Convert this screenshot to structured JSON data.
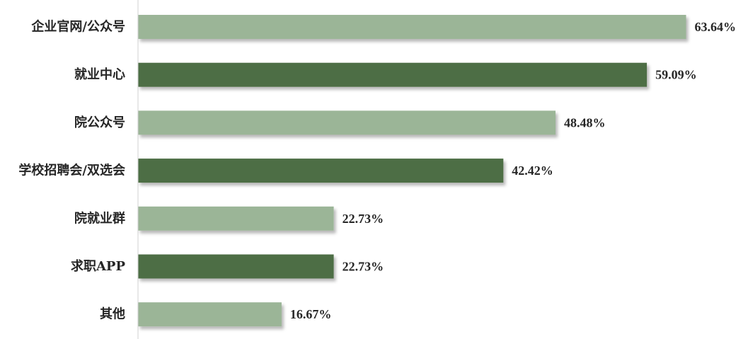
{
  "chart_data": {
    "type": "bar",
    "orientation": "horizontal",
    "categories": [
      "企业官网/公众号",
      "就业中心",
      "院公众号",
      "学校招聘会/双选会",
      "院就业群",
      "求职APP",
      "其他"
    ],
    "values": [
      63.64,
      59.09,
      48.48,
      42.42,
      22.73,
      22.73,
      16.67
    ],
    "value_labels": [
      "63.64%",
      "59.09%",
      "48.48%",
      "42.42%",
      "22.73%",
      "22.73%",
      "16.67%"
    ],
    "unit": "%",
    "xlim": [
      0,
      100
    ],
    "grid": false,
    "legend": "none",
    "colors": {
      "light": "#9bb597",
      "dark": "#4e6e45",
      "axis": "#d0d0d0",
      "shadow": "#bfbfbf",
      "text": "#262626"
    }
  }
}
